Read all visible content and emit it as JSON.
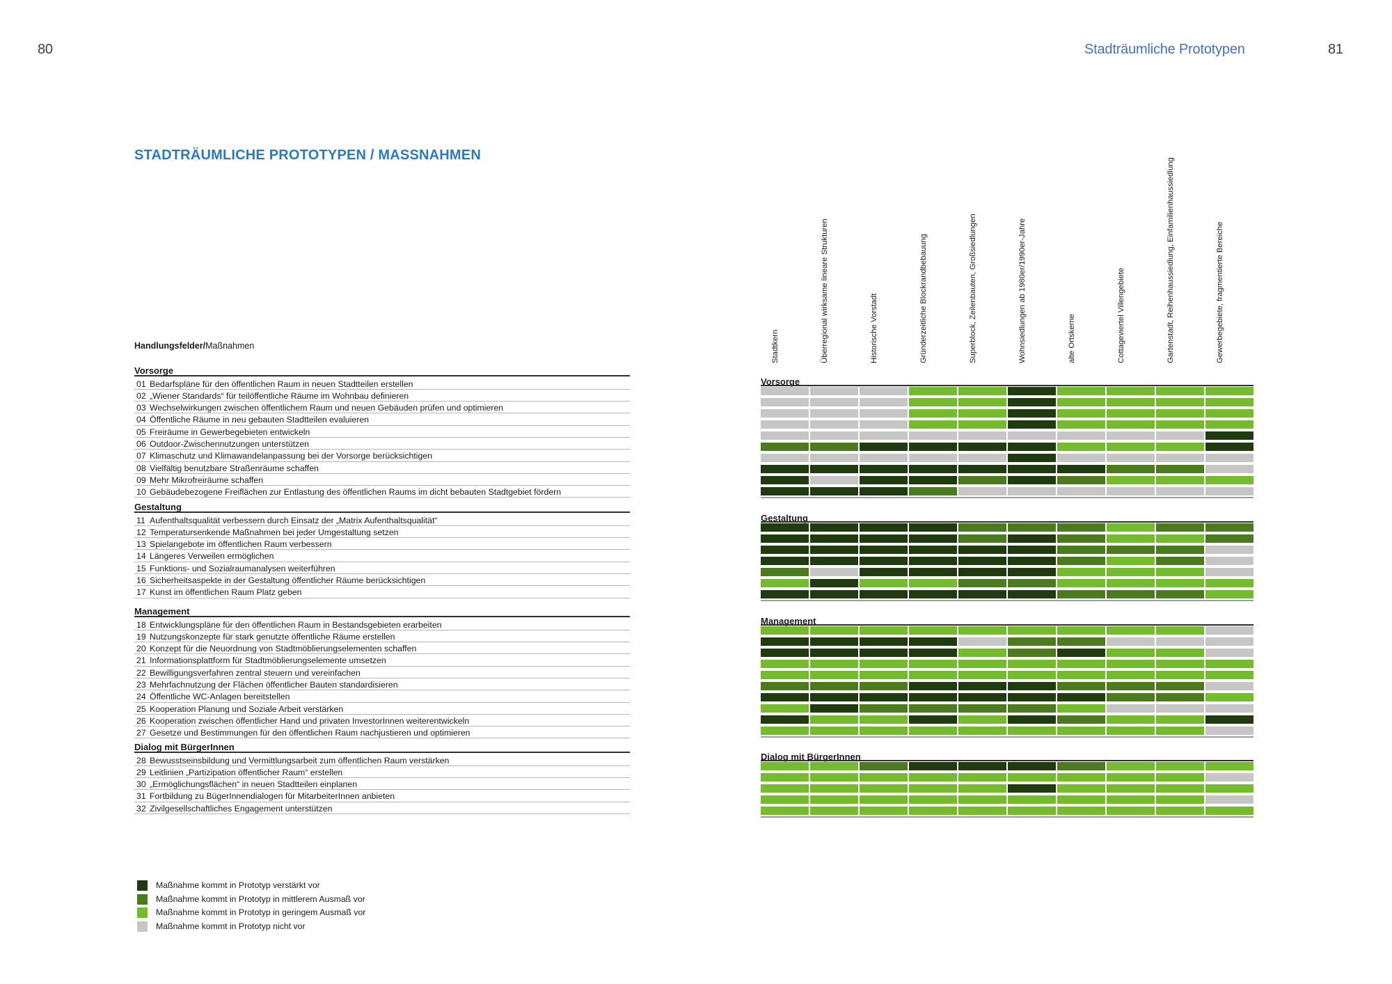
{
  "page": {
    "left_page_number": "80",
    "header_title": "Stadträumliche Prototypen",
    "right_page_number": "81"
  },
  "title": "STADTRÄUMLICHE PROTOTYPEN / MASSNAHMEN",
  "list_header": {
    "strong": "Handlungsfelder/",
    "regular": "Maßnahmen"
  },
  "colors": {
    "strong": "#203b10",
    "medium": "#4b7b1e",
    "low": "#74bb2e",
    "none": "#c6c6c6",
    "title_blue": "#2b7abf",
    "header_blue": "#4671b5"
  },
  "prototypes": [
    "Stadtkern",
    "Überregional wirksame lineare Strukturen",
    "Historische Vorstadt",
    "Gründerzeitliche Blockrandbebauung",
    "Superblock, Zeilenbauten, Großsiedlungen",
    "Wohnsiedlungen ab 1980er/1990er-Jahre",
    "alte Ortskerne",
    "Cottageviertel Villengebiete",
    "Gartenstadt, Reihenhaussiedlung, Einfamilienhaussiedlung",
    "Gewerbegebiete, fragmentierte Bereiche"
  ],
  "sections": [
    {
      "name": "Vorsorge",
      "measures": [
        {
          "no": "01",
          "label": "Bedarfspläne für den öffentlichen Raum in neuen Stadtteilen erstellen",
          "cells": "NNNLLDLLLL"
        },
        {
          "no": "02",
          "label": "„Wiener Standards“ für teilöffentliche Räume im Wohnbau definieren",
          "cells": "NNNLLDLLLL"
        },
        {
          "no": "03",
          "label": "Wechselwirkungen zwischen öffentlichem Raum und neuen Gebäuden prüfen und optimieren",
          "cells": "NNNLLDLLLL"
        },
        {
          "no": "04",
          "label": "Öffentliche Räume in neu gebauten Stadtteilen evaluieren",
          "cells": "NNNLLDLLLL"
        },
        {
          "no": "05",
          "label": "Freiräume in Gewerbegebieten entwickeln",
          "cells": "NNNNNNNNND"
        },
        {
          "no": "06",
          "label": "Outdoor-Zwischennutzungen unterstützen",
          "cells": "MMDDDDLLLD"
        },
        {
          "no": "07",
          "label": "Klimaschutz und Klimawandelanpassung bei der Vorsorge berücksichtigen",
          "cells": "NNNNNDNNNN"
        },
        {
          "no": "08",
          "label": "Vielfältig benutzbare Straßenräume schaffen",
          "cells": "DDDDDDDMMN"
        },
        {
          "no": "09",
          "label": "Mehr Mikrofreiräume schaffen",
          "cells": "DNDDMDMLLL"
        },
        {
          "no": "10",
          "label": "Gebäudebezogene Freiflächen zur Entlastung des öffentlichen Raums im dicht bebauten Stadtgebiet fördern",
          "cells": "DDDMNNNNNN"
        }
      ]
    },
    {
      "name": "Gestaltung",
      "measures": [
        {
          "no": "11",
          "label": "Aufenthaltsqualität verbessern durch Einsatz der „Matrix Aufenthaltsqualität“",
          "cells": "DDDDMMMLMM"
        },
        {
          "no": "12",
          "label": "Temperatursenkende Maßnahmen bei jeder Umgestaltung setzen",
          "cells": "DDDDMDMLLM"
        },
        {
          "no": "13",
          "label": "Spielangebote im öffentlichen Raum verbessern",
          "cells": "DDDDDDMMMN"
        },
        {
          "no": "14",
          "label": "Längeres Verweilen ermöglichen",
          "cells": "DDDDDDMLMN"
        },
        {
          "no": "15",
          "label": "Funktions- und Sozialraumanalysen weiterführen",
          "cells": "MNDDDDLLLN"
        },
        {
          "no": "16",
          "label": "Sicherheitsaspekte in der Gestaltung öffentlicher Räume berücksichtigen",
          "cells": "LDLLMMLLLL"
        },
        {
          "no": "17",
          "label": "Kunst im öffentlichen Raum Platz geben",
          "cells": "DDDDDDMMML"
        }
      ]
    },
    {
      "name": "Management",
      "measures": [
        {
          "no": "18",
          "label": "Entwicklungspläne für den öffentlichen Raum in Bestandsgebieten erarbeiten",
          "cells": "LLLLLLLLLN"
        },
        {
          "no": "19",
          "label": "Nutzungskonzepte für stark genutzte öffentliche Räume erstellen",
          "cells": "DDDDNMMNNN"
        },
        {
          "no": "20",
          "label": "Konzept für die Neuordnung von Stadtmöblierungselementen schaffen",
          "cells": "DDDDLMDLLN"
        },
        {
          "no": "21",
          "label": "Informationsplattform für Stadtmöblierungselemente umsetzen",
          "cells": "LLLLLLLLLL"
        },
        {
          "no": "22",
          "label": "Bewilligungsverfahren zentral steuern und vereinfachen",
          "cells": "LLLLLLLLLL"
        },
        {
          "no": "23",
          "label": "Mehrfachnutzung der Flächen öffentlicher Bauten standardisieren",
          "cells": "MMMDDDMMMN"
        },
        {
          "no": "24",
          "label": "Öffentliche WC-Anlagen bereitstellen",
          "cells": "DDDDDDDMML"
        },
        {
          "no": "25",
          "label": "Kooperation Planung und Soziale Arbeit verstärken",
          "cells": "LDMMMMLNNN"
        },
        {
          "no": "26",
          "label": "Kooperation zwischen öffentlicher Hand und privaten InvestorInnen weiterentwickeln",
          "cells": "DLLDLDMLLD"
        },
        {
          "no": "27",
          "label": "Gesetze und Bestimmungen für den öffentlichen Raum nachjustieren und optimieren",
          "cells": "LLLLLLLLLN"
        }
      ]
    },
    {
      "name": "Dialog mit BürgerInnen",
      "measures": [
        {
          "no": "28",
          "label": "Bewusstseinsbildung und Vermittlungsarbeit zum öffentlichen Raum verstärken",
          "cells": "LLMDDDMLLL"
        },
        {
          "no": "29",
          "label": "Leitlinien „Partizipation öffentlicher Raum“ erstellen",
          "cells": "LLLLLLLLLN"
        },
        {
          "no": "30",
          "label": "„Ermöglichungsflächen“ in neuen Stadtteilen einplanen",
          "cells": "LLLLLDLLLL"
        },
        {
          "no": "31",
          "label": "Fortbildung zu BügerInnendialogen für MitarbeiterInnen anbieten",
          "cells": "LLLLLLLLLN"
        },
        {
          "no": "32",
          "label": "Zivilgesellschaftliches Engagement unterstützen",
          "cells": "LLLLLLLLLL"
        }
      ]
    }
  ],
  "legend": [
    {
      "key": "strong",
      "label": "Maßnahme kommt in Prototyp verstärkt vor"
    },
    {
      "key": "medium",
      "label": "Maßnahme kommt in Prototyp in mittlerem Ausmaß vor"
    },
    {
      "key": "low",
      "label": "Maßnahme kommt in Prototyp in geringem Ausmaß vor"
    },
    {
      "key": "none",
      "label": "Maßnahme kommt in Prototyp nicht vor"
    }
  ]
}
